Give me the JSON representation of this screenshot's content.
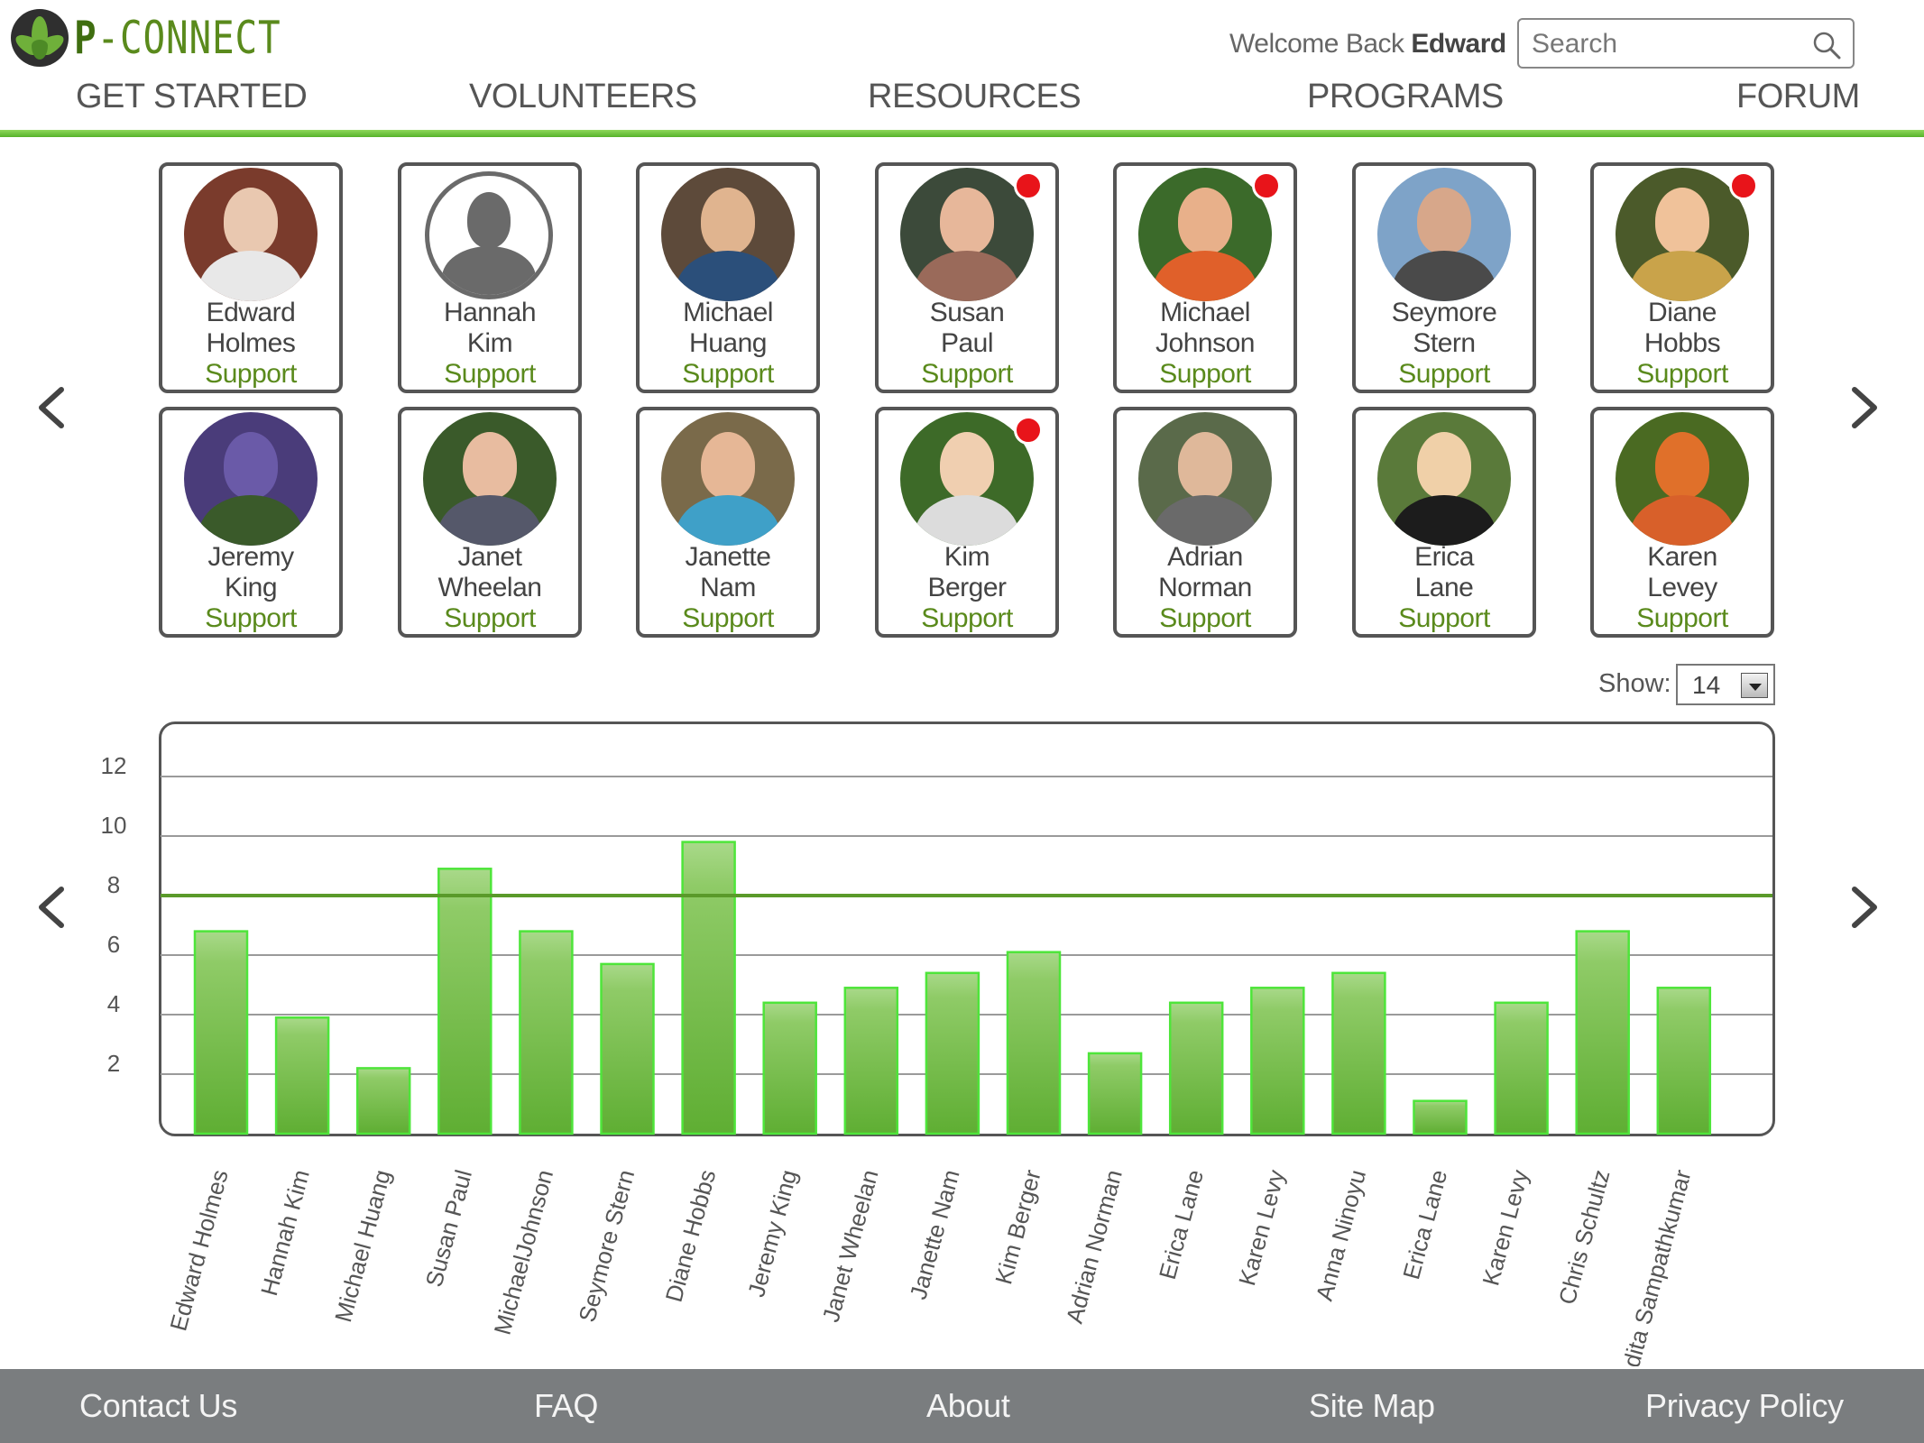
{
  "brand": {
    "name_first": "P",
    "name_rest": "-CONNECT"
  },
  "header": {
    "welcome_prefix": "Welcome Back",
    "welcome_user": "Edward",
    "search_placeholder": "Search"
  },
  "nav": [
    {
      "label": "GET STARTED"
    },
    {
      "label": "VOLUNTEERS"
    },
    {
      "label": "RESOURCES"
    },
    {
      "label": "PROGRAMS"
    },
    {
      "label": "FORUM"
    }
  ],
  "volunteers": [
    {
      "first": "Edward",
      "last": "Holmes",
      "role": "Support",
      "notify": false
    },
    {
      "first": "Hannah",
      "last": "Kim",
      "role": "Support",
      "notify": false
    },
    {
      "first": "Michael",
      "last": "Huang",
      "role": "Support",
      "notify": false
    },
    {
      "first": "Susan",
      "last": "Paul",
      "role": "Support",
      "notify": true
    },
    {
      "first": "Michael",
      "last": "Johnson",
      "role": "Support",
      "notify": true
    },
    {
      "first": "Seymore",
      "last": "Stern",
      "role": "Support",
      "notify": false
    },
    {
      "first": "Diane",
      "last": "Hobbs",
      "role": "Support",
      "notify": true
    },
    {
      "first": "Jeremy",
      "last": "King",
      "role": "Support",
      "notify": false
    },
    {
      "first": "Janet",
      "last": "Wheelan",
      "role": "Support",
      "notify": false
    },
    {
      "first": "Janette",
      "last": "Nam",
      "role": "Support",
      "notify": false
    },
    {
      "first": "Kim",
      "last": "Berger",
      "role": "Support",
      "notify": true
    },
    {
      "first": "Adrian",
      "last": "Norman",
      "role": "Support",
      "notify": false
    },
    {
      "first": "Erica",
      "last": "Lane",
      "role": "Support",
      "notify": false
    },
    {
      "first": "Karen",
      "last": "Levey",
      "role": "Support",
      "notify": false
    }
  ],
  "show": {
    "label": "Show:",
    "value": "14"
  },
  "chart_data": {
    "type": "bar",
    "categories": [
      "Edward Holmes",
      "Hannah Kim",
      "Michael Huang",
      "Susan Paul",
      "MichaelJohnson",
      "Seymore Stern",
      "Diane Hobbs",
      "Jeremy King",
      "Janet Wheelan",
      "Janette Nam",
      "Kim Berger",
      "Adrian Norman",
      "Erica Lane",
      "Karen Levy",
      "Anna Ninoyu",
      "Erica Lane",
      "Karen Levy",
      "Chris Schultz",
      "Ndita Sampathkumar"
    ],
    "values": [
      6.8,
      3.9,
      2.2,
      8.9,
      6.8,
      5.7,
      9.8,
      4.4,
      4.9,
      5.4,
      6.1,
      2.7,
      4.4,
      4.9,
      5.4,
      1.1,
      4.4,
      6.8,
      4.9
    ],
    "yticks": [
      2,
      4,
      6,
      8,
      10,
      12
    ],
    "ylim": [
      0,
      12
    ],
    "reference_line": 8,
    "grid": true,
    "bar_color": "#72bb44",
    "reference_color": "#5a9a2a"
  },
  "footer": [
    {
      "label": "Contact Us"
    },
    {
      "label": "FAQ"
    },
    {
      "label": "About"
    },
    {
      "label": "Site Map"
    },
    {
      "label": "Privacy Policy"
    }
  ]
}
